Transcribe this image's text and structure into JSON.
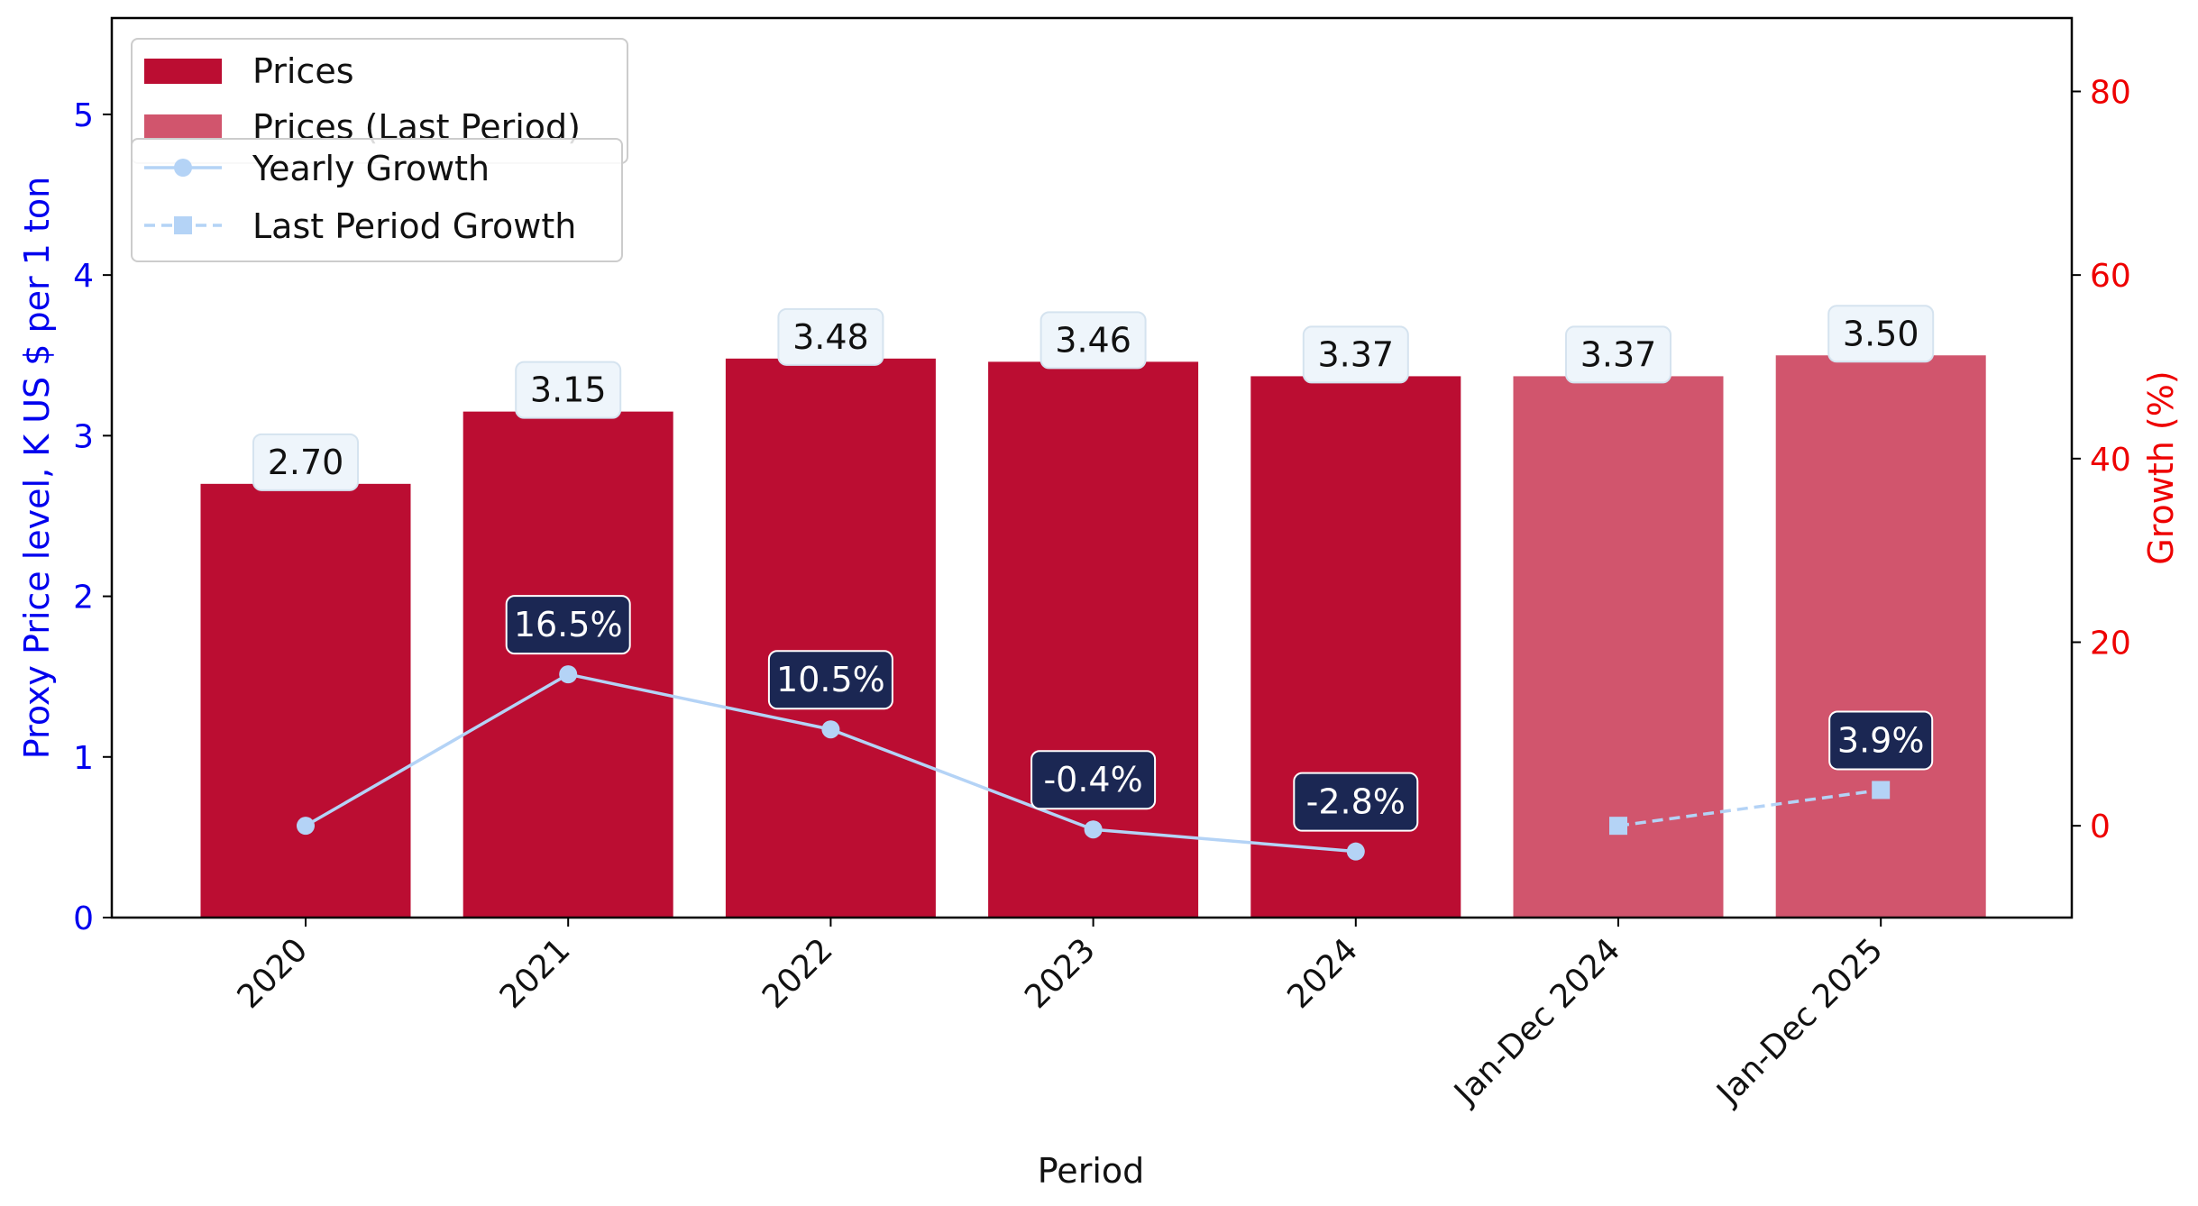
{
  "colors": {
    "prices": "#bb0d32",
    "prices_last": "#d1556d",
    "growth_line": "#b4d3f6",
    "growth_label_bg": "#1b2753",
    "price_label_bg": "#eef5fb",
    "left_axis": "#0000ee",
    "right_axis": "#ee0000"
  },
  "chart_data": {
    "type": "bar",
    "categories": [
      "2020",
      "2021",
      "2022",
      "2023",
      "2024",
      "Jan-Dec 2024",
      "Jan-Dec 2025"
    ],
    "series": [
      {
        "name": "Prices",
        "values": [
          2.7,
          3.15,
          3.48,
          3.46,
          3.37,
          null,
          null
        ],
        "axis": "left",
        "type": "bar"
      },
      {
        "name": "Prices (Last Period)",
        "values": [
          null,
          null,
          null,
          null,
          null,
          3.37,
          3.5
        ],
        "axis": "left",
        "type": "bar"
      },
      {
        "name": "Yearly Growth",
        "values": [
          0,
          16.5,
          10.5,
          -0.4,
          -2.8,
          null,
          null
        ],
        "axis": "right",
        "type": "line",
        "marker": "circle"
      },
      {
        "name": "Last Period Growth",
        "values": [
          null,
          null,
          null,
          null,
          null,
          0,
          3.9
        ],
        "axis": "right",
        "type": "line",
        "marker": "square",
        "dashed": true
      }
    ],
    "price_labels": [
      "2.70",
      "3.15",
      "3.48",
      "3.46",
      "3.37",
      "3.37",
      "3.50"
    ],
    "growth_labels": [
      null,
      "16.5%",
      "10.5%",
      "-0.4%",
      "-2.8%",
      null,
      "3.9%"
    ],
    "xlabel": "Period",
    "ylabel": "Proxy Price level, K US $ per 1 ton",
    "y2label": "Growth (%)",
    "ylim": [
      0,
      5.6
    ],
    "y2lim": [
      -10,
      88
    ],
    "yticks": [
      0,
      1,
      2,
      3,
      4,
      5
    ],
    "y2ticks": [
      0,
      20,
      40,
      60,
      80
    ],
    "legend_position": "top-left",
    "grid": false
  }
}
